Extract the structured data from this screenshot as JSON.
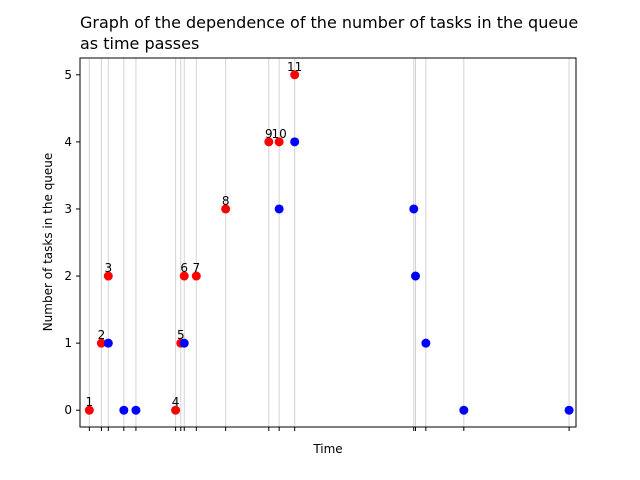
{
  "chart_data": {
    "type": "scatter",
    "title_line1": "Graph of the dependence of the number of tasks in the queue",
    "title_line2": "as time passes",
    "xlabel": "Time",
    "ylabel": "Number of tasks in the queue",
    "y_ticks": [
      0,
      1,
      2,
      3,
      4,
      5
    ],
    "ylim": [
      -0.25,
      5.25
    ],
    "xlim": [
      -0.27,
      14.1
    ],
    "grid": "vertical lines at event times",
    "x_ticks": [
      0,
      0.35,
      0.55,
      1.0,
      1.35,
      2.5,
      2.65,
      2.75,
      3.1,
      3.95,
      5.2,
      5.5,
      5.95,
      9.4,
      9.45,
      9.75,
      10.85,
      13.9
    ],
    "series": [
      {
        "color": "#ff0000",
        "points": [
          {
            "x": 0,
            "y": 0,
            "label": "1"
          },
          {
            "x": 0.35,
            "y": 1,
            "label": "2"
          },
          {
            "x": 0.55,
            "y": 2,
            "label": "3"
          },
          {
            "x": 2.5,
            "y": 0,
            "label": "4"
          },
          {
            "x": 2.65,
            "y": 1,
            "label": "5"
          },
          {
            "x": 2.75,
            "y": 2,
            "label": "6"
          },
          {
            "x": 3.1,
            "y": 2,
            "label": "7"
          },
          {
            "x": 3.95,
            "y": 3,
            "label": "8"
          },
          {
            "x": 5.2,
            "y": 4,
            "label": "9"
          },
          {
            "x": 5.5,
            "y": 4,
            "label": "10"
          },
          {
            "x": 5.95,
            "y": 5,
            "label": "11"
          }
        ]
      },
      {
        "color": "#0000ff",
        "points": [
          {
            "x": 0.55,
            "y": 1
          },
          {
            "x": 1.0,
            "y": 0
          },
          {
            "x": 1.35,
            "y": 0
          },
          {
            "x": 2.75,
            "y": 1
          },
          {
            "x": 5.5,
            "y": 3
          },
          {
            "x": 5.95,
            "y": 4
          },
          {
            "x": 9.4,
            "y": 3
          },
          {
            "x": 9.45,
            "y": 2
          },
          {
            "x": 9.75,
            "y": 1
          },
          {
            "x": 10.85,
            "y": 0
          },
          {
            "x": 13.9,
            "y": 0
          }
        ]
      }
    ]
  }
}
